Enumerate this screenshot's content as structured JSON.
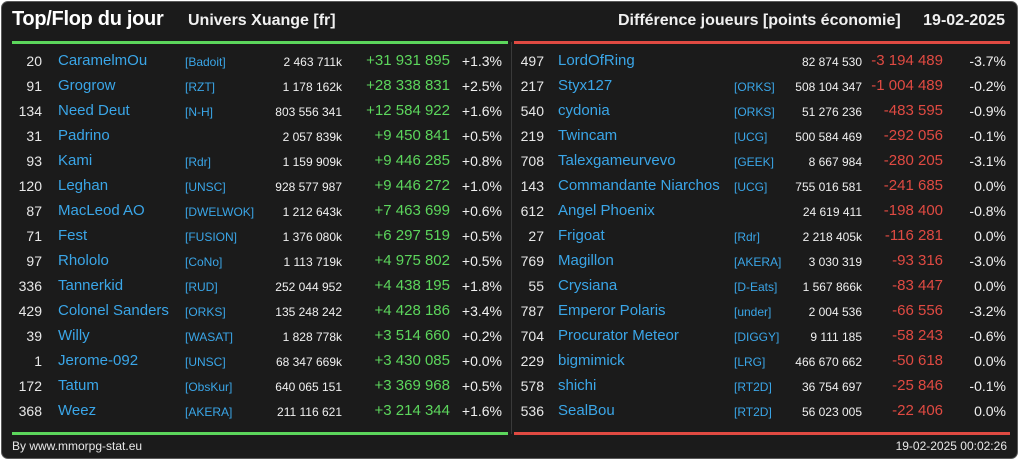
{
  "header": {
    "title": "Top/Flop du jour",
    "universe": "Univers Xuange [fr]",
    "metric": "Différence joueurs [points économie]",
    "date": "19-02-2025"
  },
  "colors": {
    "background": "#1b1b1b",
    "name": "#3aa6e8",
    "positive": "#5cd65c",
    "negative": "#e04a42"
  },
  "top": [
    {
      "rank": "20",
      "name": "CaramelmOu",
      "tag": "[Badoit]",
      "points": "2 463 711k",
      "diff": "+31 931 895",
      "pct": "+1.3%"
    },
    {
      "rank": "91",
      "name": "Grogrow",
      "tag": "[RZT]",
      "points": "1 178 162k",
      "diff": "+28 338 831",
      "pct": "+2.5%"
    },
    {
      "rank": "134",
      "name": "Need Deut",
      "tag": "[N-H]",
      "points": "803 556 341",
      "diff": "+12 584 922",
      "pct": "+1.6%"
    },
    {
      "rank": "31",
      "name": "Padrino",
      "tag": "",
      "points": "2 057 839k",
      "diff": "+9 450 841",
      "pct": "+0.5%"
    },
    {
      "rank": "93",
      "name": "Kami",
      "tag": "[Rdr]",
      "points": "1 159 909k",
      "diff": "+9 446 285",
      "pct": "+0.8%"
    },
    {
      "rank": "120",
      "name": "Leghan",
      "tag": "[UNSC]",
      "points": "928 577 987",
      "diff": "+9 446 272",
      "pct": "+1.0%"
    },
    {
      "rank": "87",
      "name": "MacLeod AO",
      "tag": "[DWELWOK]",
      "points": "1 212 643k",
      "diff": "+7 463 699",
      "pct": "+0.6%"
    },
    {
      "rank": "71",
      "name": "Fest",
      "tag": "[FUSION]",
      "points": "1 376 080k",
      "diff": "+6 297 519",
      "pct": "+0.5%"
    },
    {
      "rank": "97",
      "name": "Rhololo",
      "tag": "[CoNo]",
      "points": "1 113 719k",
      "diff": "+4 975 802",
      "pct": "+0.5%"
    },
    {
      "rank": "336",
      "name": "Tannerkid",
      "tag": "[RUD]",
      "points": "252 044 952",
      "diff": "+4 438 195",
      "pct": "+1.8%"
    },
    {
      "rank": "429",
      "name": "Colonel Sanders",
      "tag": "[ORKS]",
      "points": "135 248 242",
      "diff": "+4 428 186",
      "pct": "+3.4%"
    },
    {
      "rank": "39",
      "name": "Willy",
      "tag": "[WASAT]",
      "points": "1 828 778k",
      "diff": "+3 514 660",
      "pct": "+0.2%"
    },
    {
      "rank": "1",
      "name": "Jerome-092",
      "tag": "[UNSC]",
      "points": "68 347 669k",
      "diff": "+3 430 085",
      "pct": "+0.0%"
    },
    {
      "rank": "172",
      "name": "Tatum",
      "tag": "[ObsKur]",
      "points": "640 065 151",
      "diff": "+3 369 968",
      "pct": "+0.5%"
    },
    {
      "rank": "368",
      "name": "Weez",
      "tag": "[AKERA]",
      "points": "211 116 621",
      "diff": "+3 214 344",
      "pct": "+1.6%"
    }
  ],
  "flop": [
    {
      "rank": "497",
      "name": "LordOfRing",
      "tag": "",
      "points": "82 874 530",
      "diff": "-3 194 489",
      "pct": "-3.7%"
    },
    {
      "rank": "217",
      "name": "Styx127",
      "tag": "[ORKS]",
      "points": "508 104 347",
      "diff": "-1 004 489",
      "pct": "-0.2%"
    },
    {
      "rank": "540",
      "name": "cydonia",
      "tag": "[ORKS]",
      "points": "51 276 236",
      "diff": "-483 595",
      "pct": "-0.9%"
    },
    {
      "rank": "219",
      "name": "Twincam",
      "tag": "[UCG]",
      "points": "500 584 469",
      "diff": "-292 056",
      "pct": "-0.1%"
    },
    {
      "rank": "708",
      "name": "Talexgameurvevo",
      "tag": "[GEEK]",
      "points": "8 667 984",
      "diff": "-280 205",
      "pct": "-3.1%"
    },
    {
      "rank": "143",
      "name": "Commandante Niarchos",
      "tag": "[UCG]",
      "points": "755 016 581",
      "diff": "-241 685",
      "pct": "0.0%"
    },
    {
      "rank": "612",
      "name": "Angel Phoenix",
      "tag": "",
      "points": "24 619 411",
      "diff": "-198 400",
      "pct": "-0.8%"
    },
    {
      "rank": "27",
      "name": "Frigoat",
      "tag": "[Rdr]",
      "points": "2 218 405k",
      "diff": "-116 281",
      "pct": "0.0%"
    },
    {
      "rank": "769",
      "name": "Magillon",
      "tag": "[AKERA]",
      "points": "3 030 319",
      "diff": "-93 316",
      "pct": "-3.0%"
    },
    {
      "rank": "55",
      "name": "Crysiana",
      "tag": "[D-Eats]",
      "points": "1 567 866k",
      "diff": "-83 447",
      "pct": "0.0%"
    },
    {
      "rank": "787",
      "name": "Emperor Polaris",
      "tag": "[under]",
      "points": "2 004 536",
      "diff": "-66 556",
      "pct": "-3.2%"
    },
    {
      "rank": "704",
      "name": "Procurator Meteor",
      "tag": "[DIGGY]",
      "points": "9 111 185",
      "diff": "-58 243",
      "pct": "-0.6%"
    },
    {
      "rank": "229",
      "name": "bigmimick",
      "tag": "[LRG]",
      "points": "466 670 662",
      "diff": "-50 618",
      "pct": "0.0%"
    },
    {
      "rank": "578",
      "name": "shichi",
      "tag": "[RT2D]",
      "points": "36 754 697",
      "diff": "-25 846",
      "pct": "-0.1%"
    },
    {
      "rank": "536",
      "name": "SealBou",
      "tag": "[RT2D]",
      "points": "56 023 005",
      "diff": "-22 406",
      "pct": "0.0%"
    }
  ],
  "footer": {
    "credit": "By www.mmorpg-stat.eu",
    "timestamp": "19-02-2025 00:02:26"
  }
}
